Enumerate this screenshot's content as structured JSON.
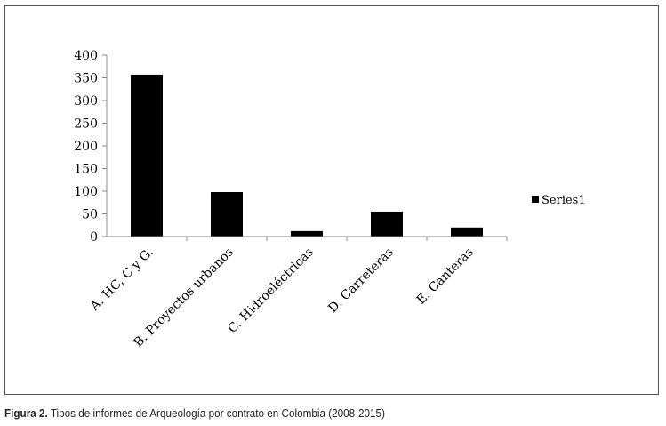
{
  "chart_data": {
    "type": "bar",
    "categories": [
      "A. HC, C y G.",
      "B. Proyectos urbanos",
      "C. Hidroeléctricas",
      "D. Carreteras",
      "E. Canteras"
    ],
    "series": [
      {
        "name": "Series1",
        "values": [
          357,
          98,
          12,
          55,
          20
        ],
        "color": "#000000"
      }
    ],
    "ylim": [
      0,
      400
    ],
    "yticks": [
      0,
      50,
      100,
      150,
      200,
      250,
      300,
      350,
      400
    ],
    "grid": false,
    "legend": "right"
  },
  "caption": {
    "label": "Figura 2.",
    "text": "Tipos de informes de Arqueología por contrato en Colombia (2008-2015)"
  }
}
